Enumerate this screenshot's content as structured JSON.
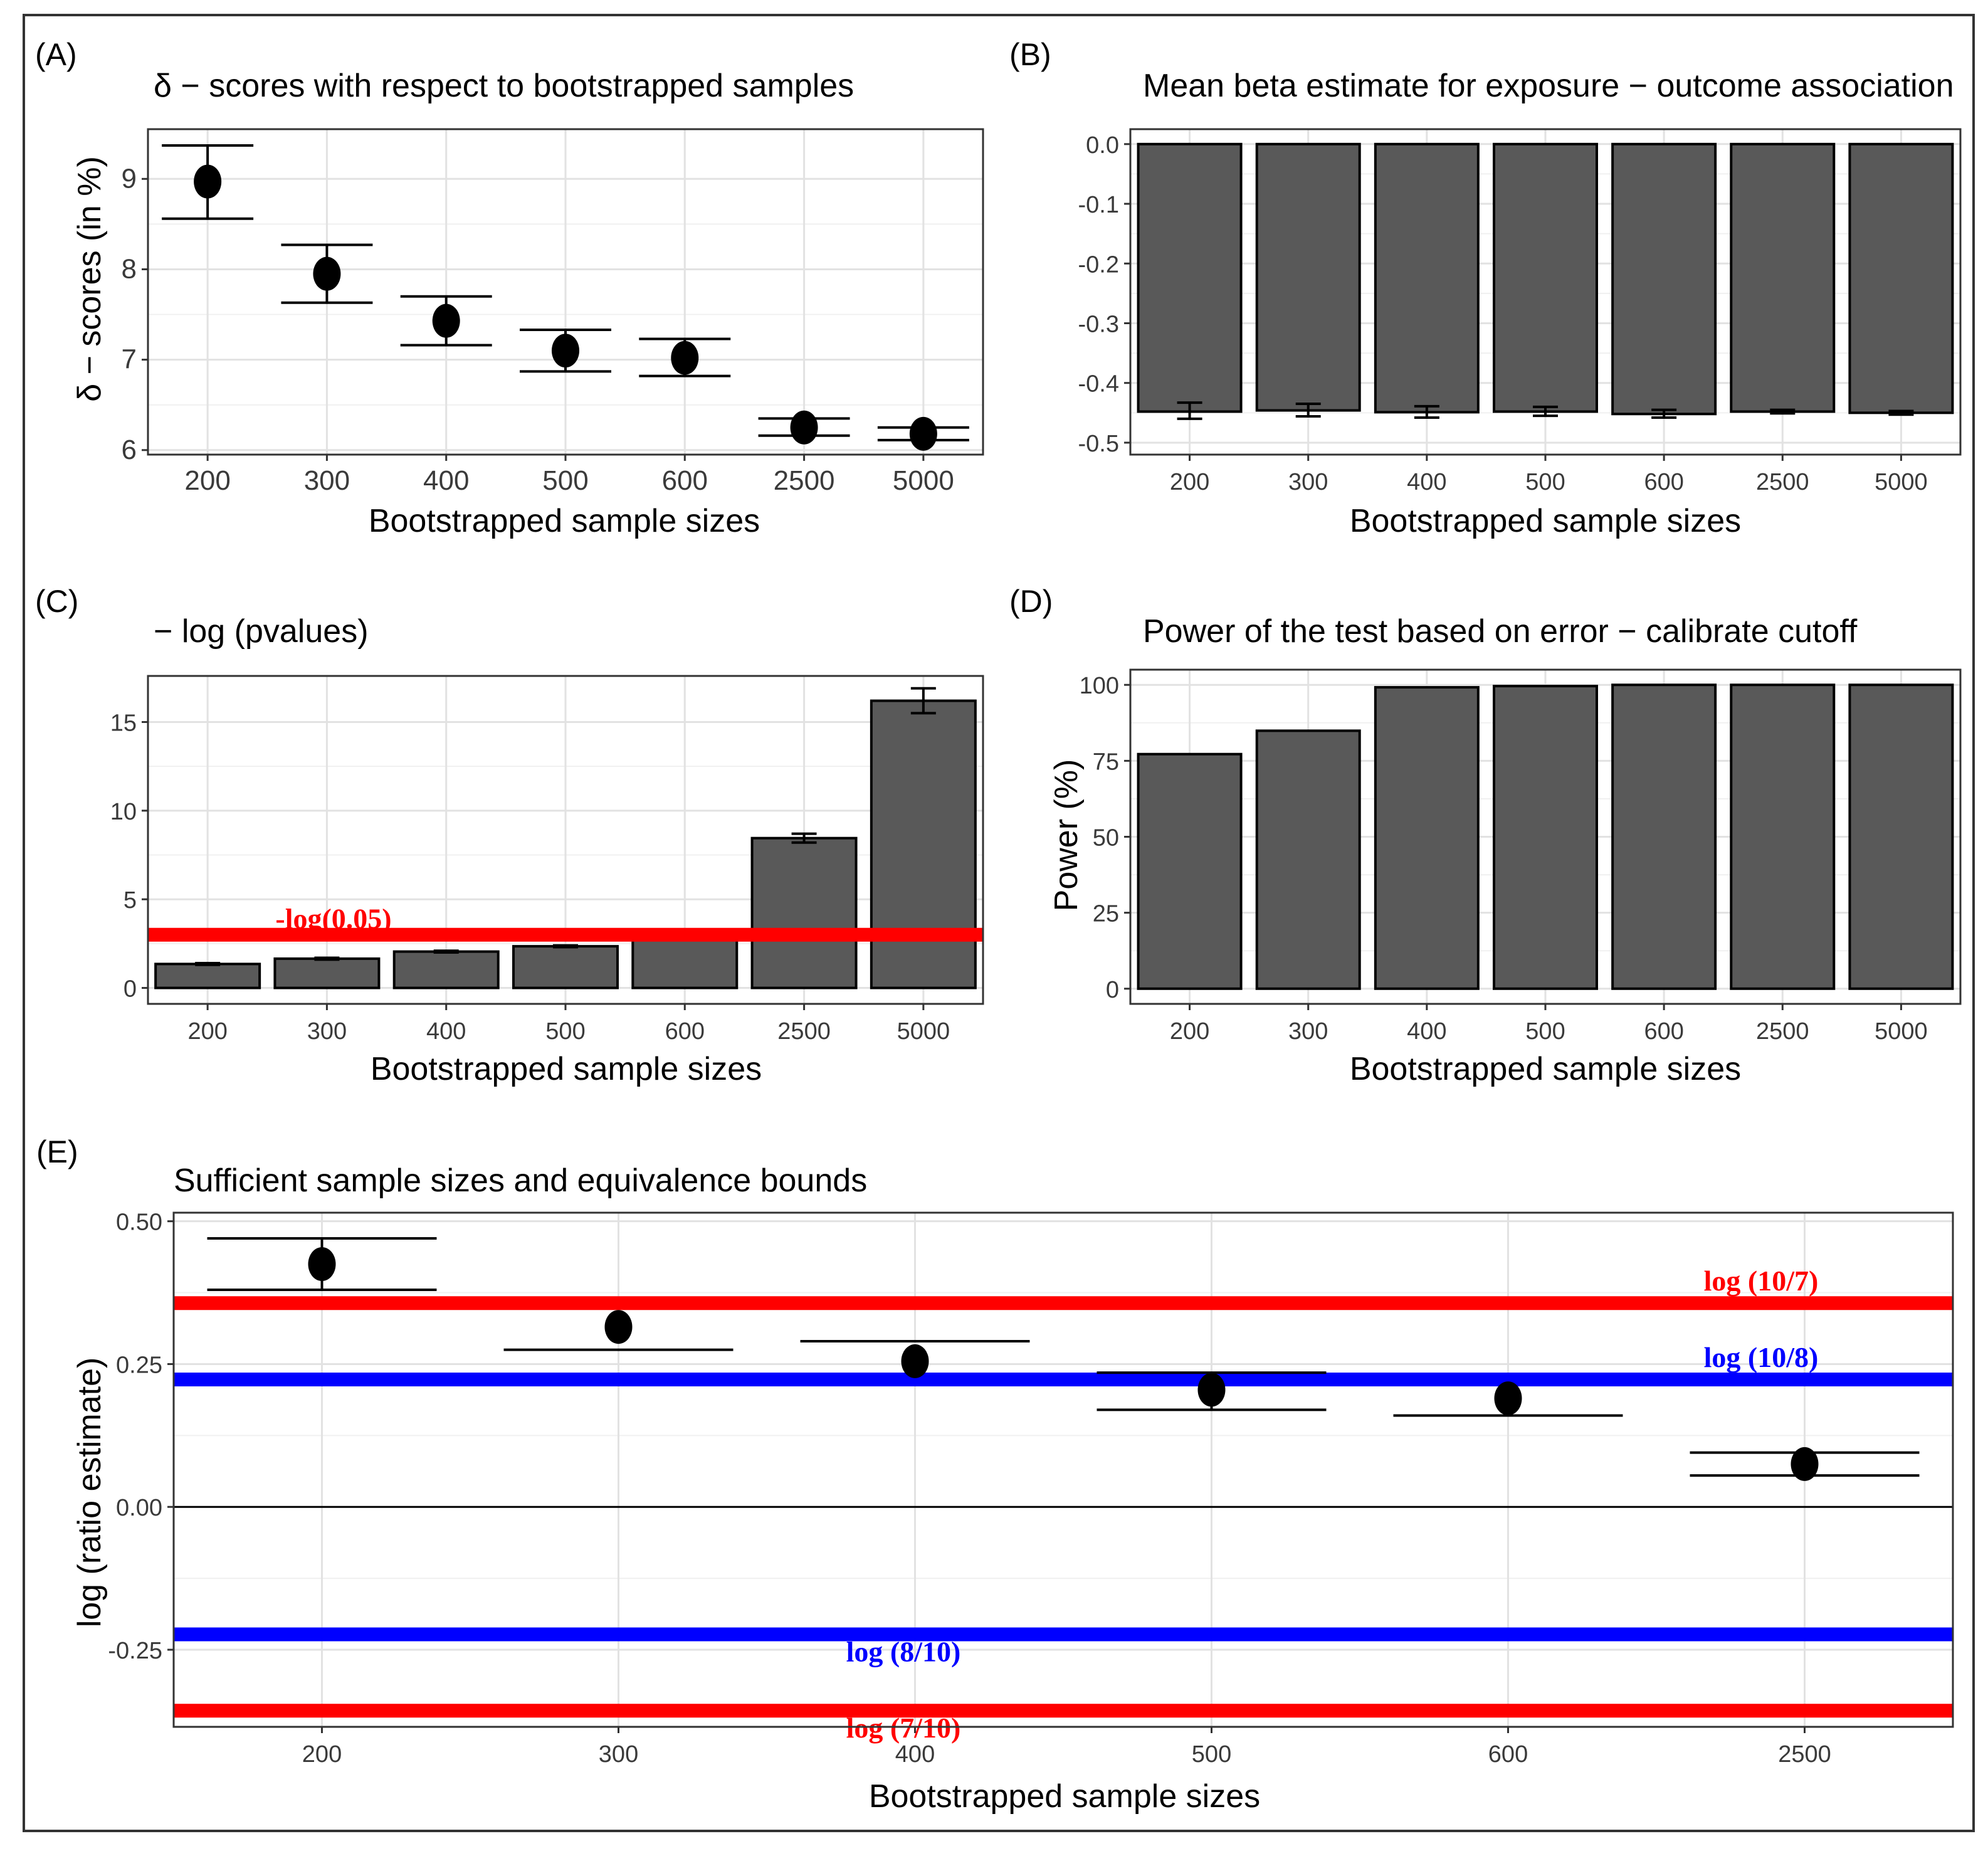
{
  "chart_data": [
    {
      "panel": "(A)",
      "type": "scatter",
      "title": "δ − scores with respect to bootstrapped samples",
      "xlabel": "Bootstrapped sample sizes",
      "ylabel": "δ − scores (in %)",
      "categories": [
        "200",
        "300",
        "400",
        "500",
        "600",
        "2500",
        "5000"
      ],
      "values": [
        8.97,
        7.95,
        7.43,
        7.1,
        7.02,
        6.25,
        6.18
      ],
      "err_low": [
        8.56,
        7.63,
        7.16,
        6.87,
        6.82,
        6.16,
        6.11
      ],
      "err_high": [
        9.37,
        8.27,
        7.7,
        7.33,
        7.23,
        6.35,
        6.25
      ],
      "ylim": [
        5.95,
        9.55
      ],
      "yticks": [
        6,
        7,
        8,
        9
      ],
      "ytick_labels": [
        "6",
        "7",
        "8",
        "9"
      ],
      "grid": true
    },
    {
      "panel": "(B)",
      "type": "bar",
      "title": "Mean beta estimate for exposure − outcome association",
      "xlabel": "Bootstrapped sample sizes",
      "ylabel": "",
      "categories": [
        "200",
        "300",
        "400",
        "500",
        "600",
        "2500",
        "5000"
      ],
      "values": [
        -0.448,
        -0.446,
        -0.449,
        -0.448,
        -0.452,
        -0.448,
        -0.45
      ],
      "err_low": [
        -0.46,
        -0.456,
        -0.458,
        -0.455,
        -0.458,
        -0.451,
        -0.453
      ],
      "err_high": [
        -0.433,
        -0.435,
        -0.439,
        -0.44,
        -0.445,
        -0.445,
        -0.447
      ],
      "ylim": [
        -0.52,
        0.025
      ],
      "yticks": [
        0.0,
        -0.1,
        -0.2,
        -0.3,
        -0.4,
        -0.5
      ],
      "ytick_labels": [
        "0.0",
        "-0.1",
        "-0.2",
        "-0.3",
        "-0.4",
        "-0.5"
      ],
      "grid": true
    },
    {
      "panel": "(C)",
      "type": "bar",
      "title": "− log (pvalues)",
      "xlabel": "Bootstrapped sample sizes",
      "ylabel": "",
      "categories": [
        "200",
        "300",
        "400",
        "500",
        "600",
        "2500",
        "5000"
      ],
      "values": [
        1.35,
        1.65,
        2.05,
        2.35,
        2.95,
        8.45,
        16.2
      ],
      "err_low": [
        1.3,
        1.6,
        2.0,
        2.3,
        null,
        8.2,
        15.5
      ],
      "err_high": [
        1.4,
        1.7,
        2.1,
        2.4,
        null,
        8.7,
        16.9
      ],
      "ylim": [
        -0.9,
        17.6
      ],
      "yticks": [
        0,
        5,
        10,
        15
      ],
      "ytick_labels": [
        "0",
        "5",
        "10",
        "15"
      ],
      "reference_lines": [
        {
          "value": 3.0,
          "color": "#ff0000",
          "label": "-log(0.05)"
        }
      ],
      "grid": true
    },
    {
      "panel": "(D)",
      "type": "bar",
      "title": "Power of the test based on error − calibrate cutoff",
      "xlabel": "Bootstrapped sample sizes",
      "ylabel": "Power (%)",
      "categories": [
        "200",
        "300",
        "400",
        "500",
        "600",
        "2500",
        "5000"
      ],
      "values": [
        77.2,
        84.9,
        99.2,
        99.6,
        100,
        100,
        100
      ],
      "ylim": [
        -5,
        105
      ],
      "yticks": [
        0,
        25,
        50,
        75,
        100
      ],
      "ytick_labels": [
        "0",
        "25",
        "50",
        "75",
        "100"
      ],
      "grid": true
    },
    {
      "panel": "(E)",
      "type": "scatter",
      "title": "Sufficient sample sizes and equivalence bounds",
      "xlabel": "Bootstrapped sample sizes",
      "ylabel": "log (ratio estimate)",
      "categories": [
        "200",
        "300",
        "400",
        "500",
        "600",
        "2500"
      ],
      "values": [
        0.425,
        0.315,
        0.255,
        0.205,
        0.19,
        0.075
      ],
      "err_low": [
        0.38,
        0.275,
        null,
        0.17,
        0.16,
        0.055
      ],
      "err_high": [
        0.47,
        null,
        0.29,
        0.235,
        null,
        0.095
      ],
      "ylim": [
        -0.385,
        0.515
      ],
      "yticks": [
        0.5,
        0.25,
        0.0,
        -0.25
      ],
      "ytick_labels": [
        "0.50",
        "0.25",
        "0.00",
        "-0.25"
      ],
      "zero_line": 0,
      "reference_lines": [
        {
          "value": 0.3567,
          "color": "#ff0000",
          "label": "log (10/7)"
        },
        {
          "value": 0.2231,
          "color": "#0000ff",
          "label": "log (10/8)"
        },
        {
          "value": -0.2231,
          "color": "#0000ff",
          "label": "log (8/10)"
        },
        {
          "value": -0.3567,
          "color": "#ff0000",
          "label": "log (7/10)"
        }
      ],
      "grid": true
    }
  ]
}
